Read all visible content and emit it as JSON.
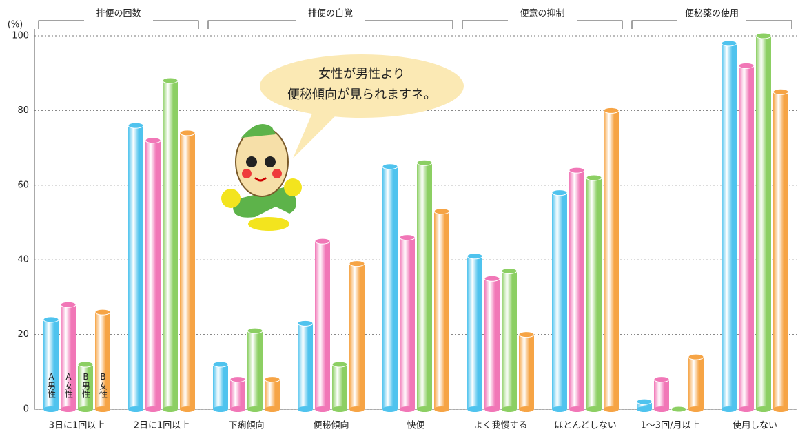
{
  "chart_data": {
    "type": "bar",
    "y_unit": "(%)",
    "groups": [
      "排便の回数",
      "排便の自覚",
      "便意の抑制",
      "便秘薬の使用"
    ],
    "annotation": [
      "女性が男性より",
      "便秘傾向が見られますネ。"
    ],
    "categories": [
      "3日に1回以上",
      "2日に1回以上",
      "下痢傾向",
      "便秘傾向",
      "快便",
      "よく我慢する",
      "ほとんどしない",
      "1～3回/月以上",
      "使用しない"
    ],
    "series": [
      {
        "name": "A男性",
        "color": "#4fc3ee",
        "values": [
          24,
          76,
          12,
          23,
          65,
          41,
          58,
          2,
          98
        ]
      },
      {
        "name": "A女性",
        "color": "#f177b7",
        "values": [
          28,
          72,
          8,
          45,
          46,
          35,
          64,
          8,
          92
        ]
      },
      {
        "name": "B男性",
        "color": "#8ccf63",
        "values": [
          12,
          88,
          21,
          12,
          66,
          37,
          62,
          0,
          100
        ]
      },
      {
        "name": "B女性",
        "color": "#f6a445",
        "values": [
          26,
          74,
          8,
          39,
          53,
          20,
          80,
          14,
          85
        ]
      }
    ],
    "ylim": [
      0,
      100
    ],
    "yticks": [
      0,
      20,
      40,
      60,
      80,
      100
    ],
    "grid": true
  }
}
